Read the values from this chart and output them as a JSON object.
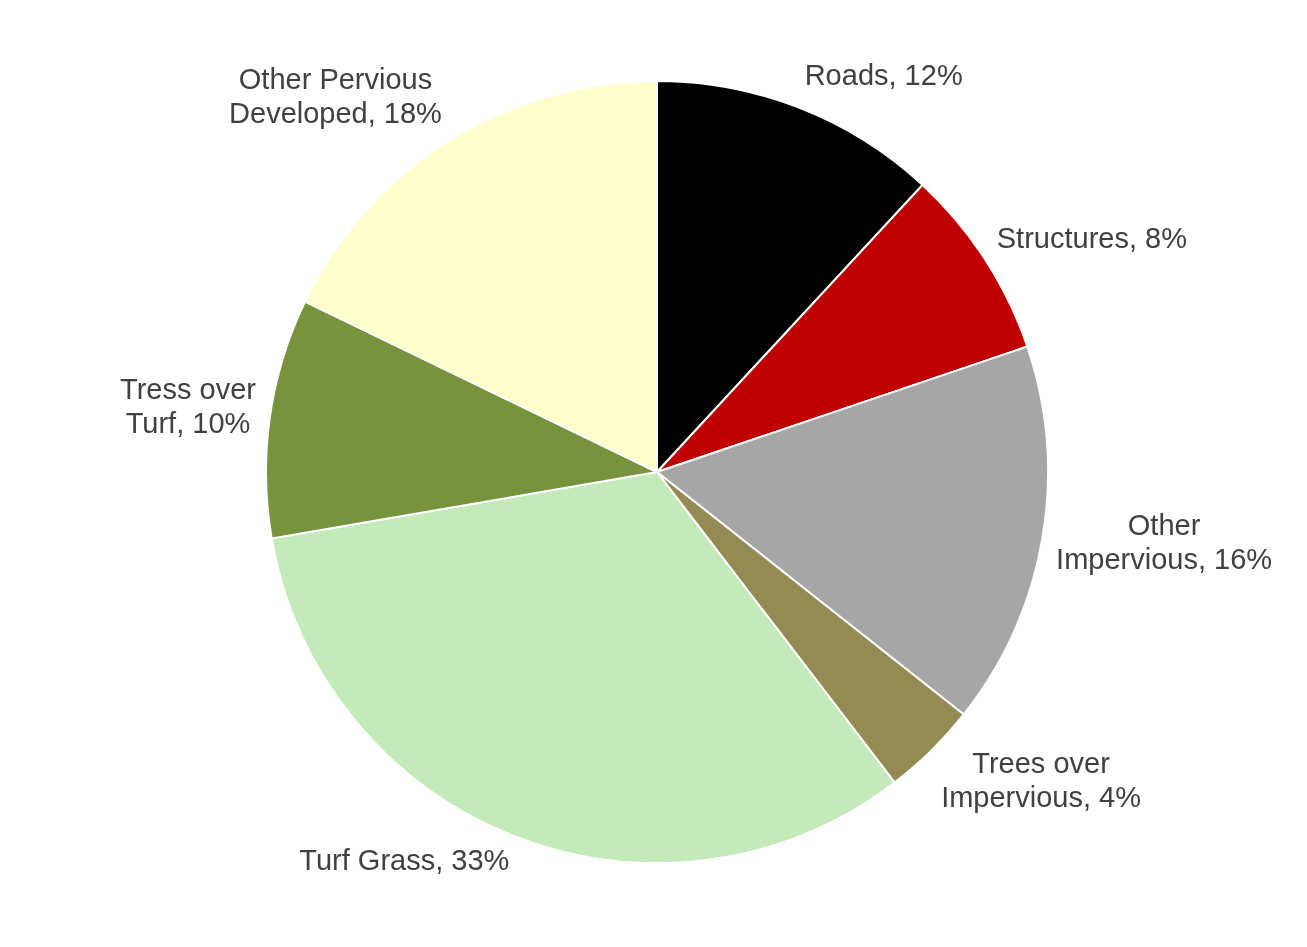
{
  "chart_data": {
    "type": "pie",
    "categories": [
      "Roads",
      "Structures",
      "Other Impervious",
      "Trees over Impervious",
      "Turf Grass",
      "Tress over Turf",
      "Other Pervious Developed"
    ],
    "values": [
      12,
      8,
      16,
      4,
      33,
      10,
      18
    ],
    "value_labels": [
      "12%",
      "8%",
      "16%",
      "4%",
      "33%",
      "10%",
      "18%"
    ],
    "colors": [
      "#000000",
      "#c00000",
      "#a6a6a6",
      "#948a54",
      "#c4eab9",
      "#77933c",
      "#ffffcc"
    ],
    "legend": false
  }
}
